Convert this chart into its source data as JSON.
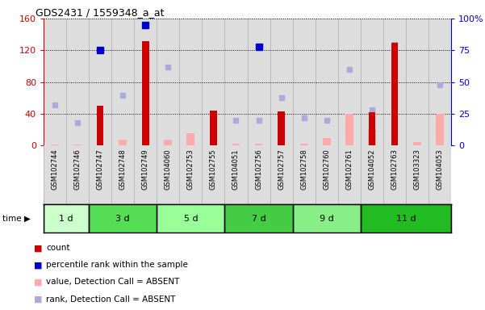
{
  "title": "GDS2431 / 1559348_a_at",
  "samples": [
    "GSM102744",
    "GSM102746",
    "GSM102747",
    "GSM102748",
    "GSM102749",
    "GSM104060",
    "GSM102753",
    "GSM102755",
    "GSM104051",
    "GSM102756",
    "GSM102757",
    "GSM102758",
    "GSM102760",
    "GSM102761",
    "GSM104052",
    "GSM102763",
    "GSM103323",
    "GSM104053"
  ],
  "time_groups": [
    {
      "label": "1 d",
      "start": 0,
      "end": 2,
      "color": "#ccffcc"
    },
    {
      "label": "3 d",
      "start": 2,
      "end": 5,
      "color": "#55dd55"
    },
    {
      "label": "5 d",
      "start": 5,
      "end": 8,
      "color": "#99ff99"
    },
    {
      "label": "7 d",
      "start": 8,
      "end": 11,
      "color": "#44cc44"
    },
    {
      "label": "9 d",
      "start": 11,
      "end": 14,
      "color": "#88ee88"
    },
    {
      "label": "11 d",
      "start": 14,
      "end": 18,
      "color": "#22bb22"
    }
  ],
  "count_values": [
    0,
    0,
    50,
    0,
    132,
    0,
    0,
    44,
    0,
    0,
    43,
    0,
    0,
    0,
    42,
    130,
    0,
    0
  ],
  "percentile_values": [
    0,
    0,
    75,
    0,
    95,
    0,
    0,
    0,
    0,
    78,
    0,
    0,
    0,
    0,
    0,
    0,
    0,
    0
  ],
  "absent_value_values": [
    2,
    2,
    0,
    8,
    0,
    8,
    16,
    6,
    3,
    3,
    3,
    3,
    10,
    40,
    20,
    0,
    5,
    40
  ],
  "absent_rank_values": [
    32,
    18,
    0,
    40,
    0,
    62,
    0,
    8,
    20,
    20,
    38,
    22,
    20,
    60,
    28,
    80,
    0,
    48
  ],
  "ylim_left": [
    0,
    160
  ],
  "ylim_right": [
    0,
    100
  ],
  "yticks_left": [
    0,
    40,
    80,
    120,
    160
  ],
  "ytick_labels_left": [
    "0",
    "40",
    "80",
    "120",
    "160"
  ],
  "yticks_right": [
    0,
    25,
    50,
    75,
    100
  ],
  "ytick_labels_right": [
    "0",
    "25",
    "50",
    "75",
    "100%"
  ],
  "count_color": "#cc0000",
  "percentile_color": "#0000cc",
  "absent_value_color": "#ffaaaa",
  "absent_rank_color": "#aaaadd",
  "bar_bg_color": "#dddddd",
  "bar_border_color": "#aaaaaa",
  "white": "#ffffff"
}
